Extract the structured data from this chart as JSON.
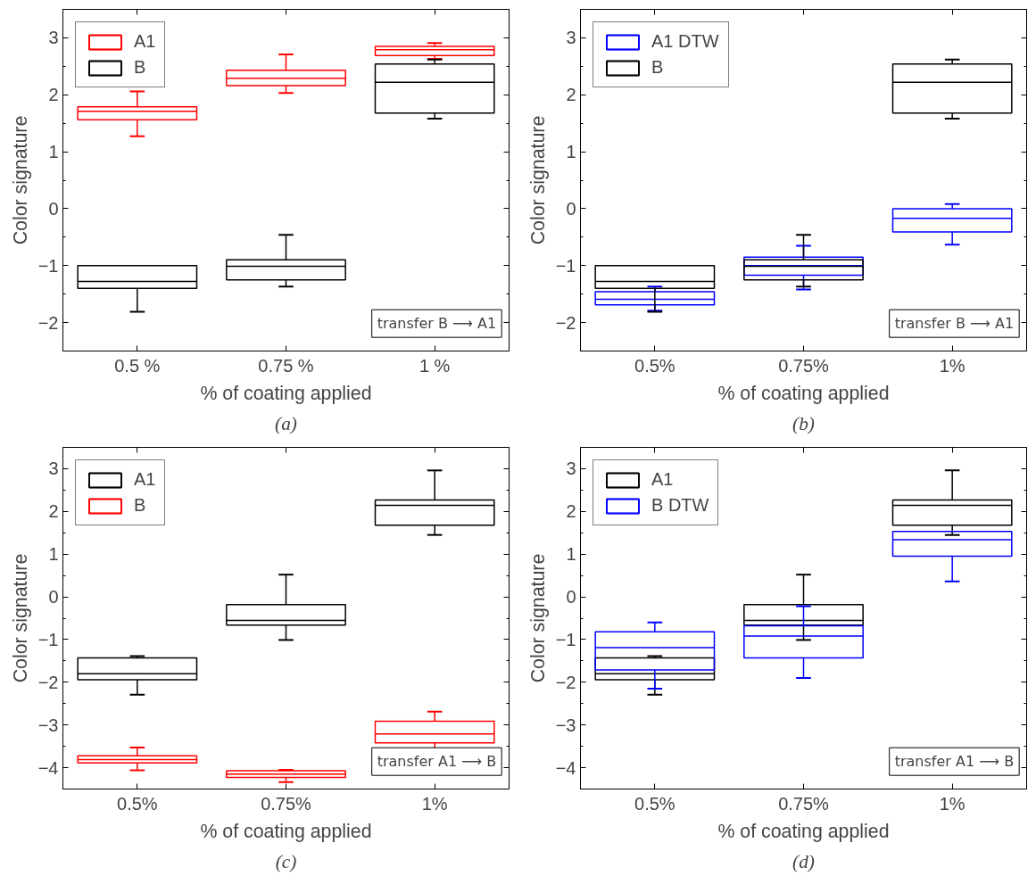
{
  "chart_data": [
    {
      "type": "box",
      "categories": [
        "0.5 %",
        "0.75 %",
        "1 %"
      ],
      "xlabel": "% of coating applied",
      "ylabel": "Color signature",
      "ylim": [
        -2.5,
        3.5
      ],
      "yticks": [
        -2,
        -1,
        0,
        1,
        2,
        3
      ],
      "grid": false,
      "legend": "top left",
      "annotations": [
        "transfer B ⟶ A1",
        "(a)"
      ],
      "series": [
        {
          "name": "A1",
          "color": "#ff0000",
          "boxes": [
            {
              "low": 1.27,
              "q1": 1.56,
              "median": 1.71,
              "q3": 1.79,
              "high": 2.06
            },
            {
              "low": 2.03,
              "q1": 2.16,
              "median": 2.29,
              "q3": 2.43,
              "high": 2.71
            },
            {
              "low": 2.63,
              "q1": 2.69,
              "median": 2.79,
              "q3": 2.85,
              "high": 2.91
            }
          ]
        },
        {
          "name": "B",
          "color": "#000000",
          "boxes": [
            {
              "low": -1.81,
              "q1": -1.4,
              "median": -1.28,
              "q3": -1.0,
              "high": -1.0
            },
            {
              "low": -1.37,
              "q1": -1.25,
              "median": -1.01,
              "q3": -0.9,
              "high": -0.46
            },
            {
              "low": 1.58,
              "q1": 1.68,
              "median": 2.22,
              "q3": 2.54,
              "high": 2.62
            }
          ]
        }
      ]
    },
    {
      "type": "box",
      "categories": [
        "0.5%",
        "0.75%",
        "1%"
      ],
      "xlabel": "% of coating applied",
      "ylabel": "Color signature",
      "ylim": [
        -2.5,
        3.5
      ],
      "yticks": [
        -2,
        -1,
        0,
        1,
        2,
        3
      ],
      "grid": false,
      "legend": "top left",
      "annotations": [
        "transfer B ⟶ A1",
        "(b)"
      ],
      "series": [
        {
          "name": "A1 DTW",
          "color": "#0000ff",
          "boxes": [
            {
              "low": -1.79,
              "q1": -1.69,
              "median": -1.59,
              "q3": -1.46,
              "high": -1.37
            },
            {
              "low": -1.42,
              "q1": -1.17,
              "median": -1.0,
              "q3": -0.85,
              "high": -0.65
            },
            {
              "low": -0.63,
              "q1": -0.41,
              "median": -0.17,
              "q3": 0.0,
              "high": 0.08
            }
          ]
        },
        {
          "name": "B",
          "color": "#000000",
          "boxes": [
            {
              "low": -1.81,
              "q1": -1.4,
              "median": -1.28,
              "q3": -1.0,
              "high": -1.0
            },
            {
              "low": -1.37,
              "q1": -1.25,
              "median": -1.01,
              "q3": -0.9,
              "high": -0.46
            },
            {
              "low": 1.58,
              "q1": 1.68,
              "median": 2.22,
              "q3": 2.54,
              "high": 2.62
            }
          ]
        }
      ]
    },
    {
      "type": "box",
      "categories": [
        "0.5%",
        "0.75%",
        "1%"
      ],
      "xlabel": "% of coating applied",
      "ylabel": "Color signature",
      "ylim": [
        -4.5,
        3.5
      ],
      "yticks": [
        -4,
        -3,
        -2,
        -1,
        0,
        1,
        2,
        3
      ],
      "grid": false,
      "legend": "top left",
      "annotations": [
        "transfer A1 ⟶ B",
        "(c)"
      ],
      "series": [
        {
          "name": "A1",
          "color": "#000000",
          "boxes": [
            {
              "low": -2.29,
              "q1": -1.94,
              "median": -1.8,
              "q3": -1.43,
              "high": -1.39
            },
            {
              "low": -1.01,
              "q1": -0.66,
              "median": -0.55,
              "q3": -0.18,
              "high": 0.52
            },
            {
              "low": 1.45,
              "q1": 1.68,
              "median": 2.14,
              "q3": 2.27,
              "high": 2.96
            }
          ]
        },
        {
          "name": "B",
          "color": "#ff0000",
          "boxes": [
            {
              "low": -4.06,
              "q1": -3.89,
              "median": -3.81,
              "q3": -3.72,
              "high": -3.53
            },
            {
              "low": -4.34,
              "q1": -4.23,
              "median": -4.15,
              "q3": -4.07,
              "high": -4.05
            },
            {
              "low": -3.62,
              "q1": -3.42,
              "median": -3.21,
              "q3": -2.91,
              "high": -2.69
            }
          ]
        }
      ]
    },
    {
      "type": "box",
      "categories": [
        "0.5%",
        "0.75%",
        "1%"
      ],
      "xlabel": "% of coating applied",
      "ylabel": "Color signature",
      "ylim": [
        -4.5,
        3.5
      ],
      "yticks": [
        -4,
        -3,
        -2,
        -1,
        0,
        1,
        2,
        3
      ],
      "grid": false,
      "legend": "top left",
      "annotations": [
        "transfer A1 ⟶ B",
        "(d)"
      ],
      "series": [
        {
          "name": "A1",
          "color": "#000000",
          "boxes": [
            {
              "low": -2.29,
              "q1": -1.94,
              "median": -1.8,
              "q3": -1.43,
              "high": -1.39
            },
            {
              "low": -1.01,
              "q1": -0.66,
              "median": -0.55,
              "q3": -0.18,
              "high": 0.52
            },
            {
              "low": 1.45,
              "q1": 1.68,
              "median": 2.14,
              "q3": 2.27,
              "high": 2.96
            }
          ]
        },
        {
          "name": "B DTW",
          "color": "#0000ff",
          "boxes": [
            {
              "low": -2.15,
              "q1": -1.71,
              "median": -1.19,
              "q3": -0.82,
              "high": -0.6
            },
            {
              "low": -1.9,
              "q1": -1.43,
              "median": -0.92,
              "q3": -0.68,
              "high": -0.22
            },
            {
              "low": 0.36,
              "q1": 0.95,
              "median": 1.34,
              "q3": 1.53,
              "high": 1.53
            }
          ]
        }
      ]
    }
  ]
}
